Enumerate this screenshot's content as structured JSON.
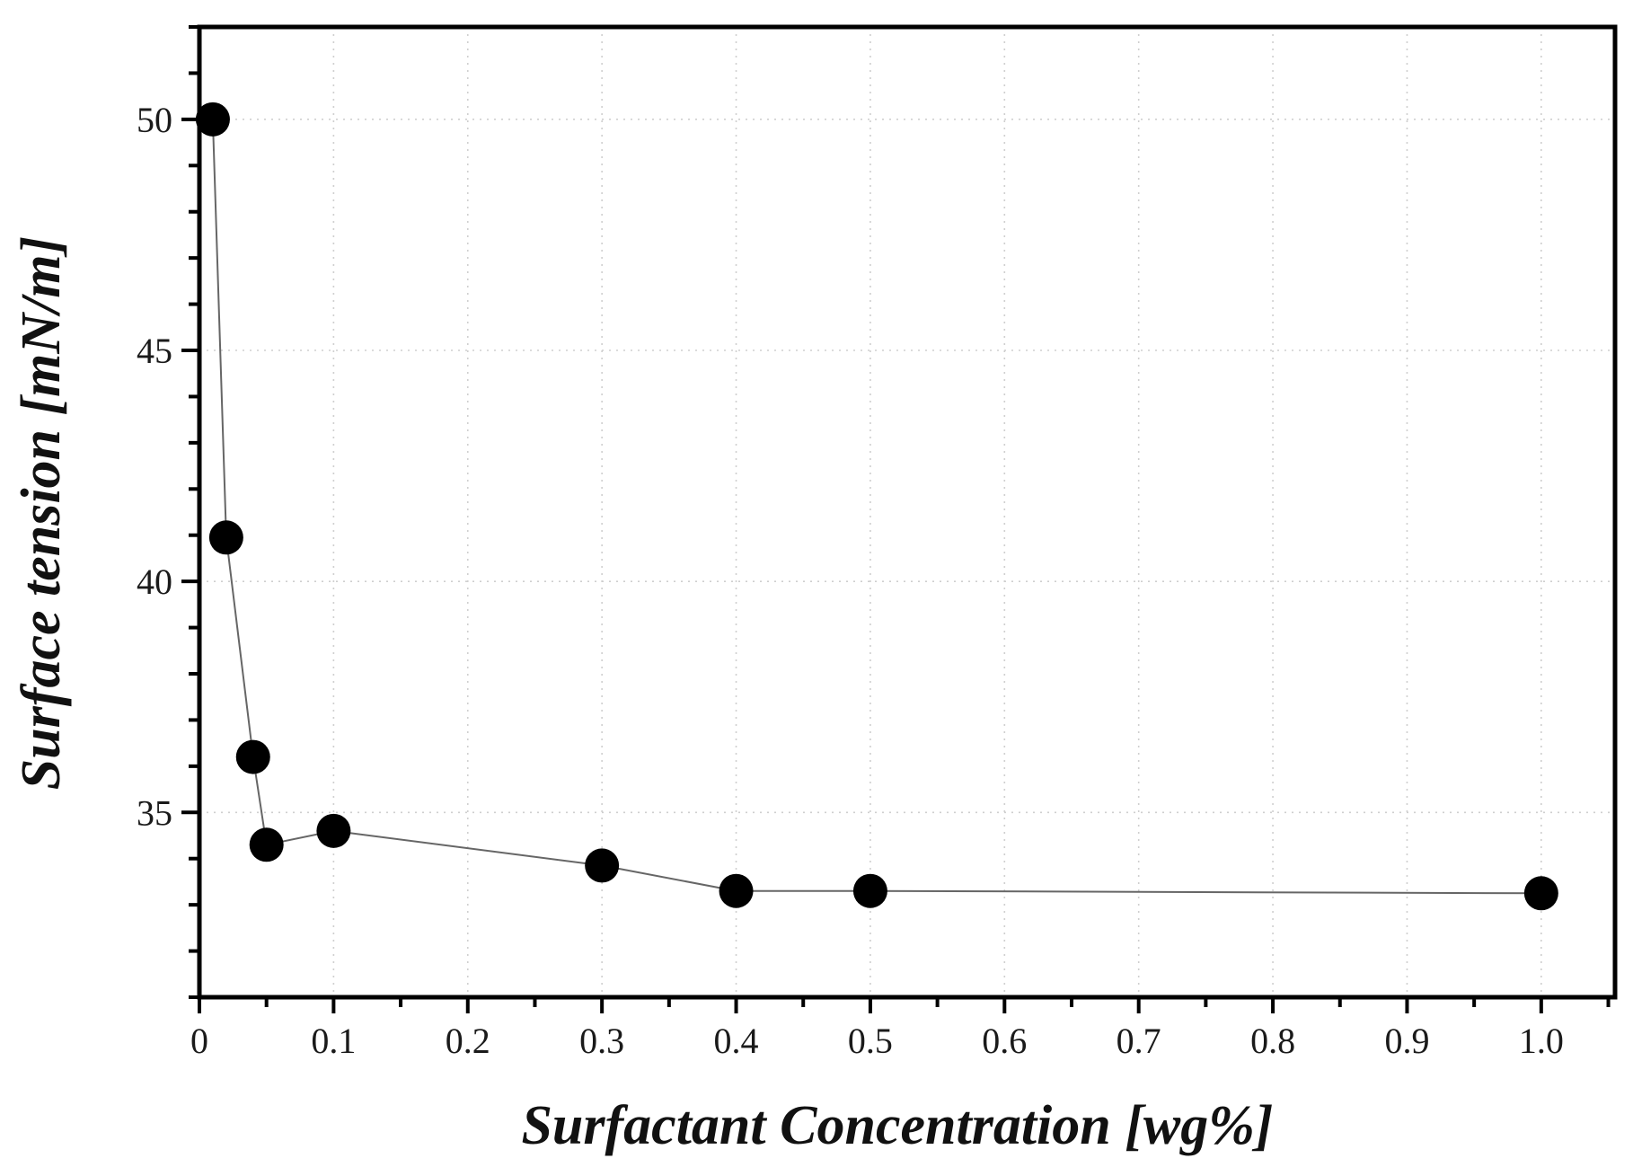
{
  "chart_data": {
    "type": "line",
    "title": "",
    "xlabel": "Surfactant Concentration [wg%]",
    "ylabel": "Surface tension [mN/m]",
    "xlim": [
      0,
      1.055
    ],
    "ylim": [
      31,
      52
    ],
    "grid": true,
    "x_ticks": [
      0,
      0.1,
      0.2,
      0.3,
      0.4,
      0.5,
      0.6,
      0.7,
      0.8,
      0.9,
      1.0
    ],
    "x_tick_labels": [
      "0",
      "0.1",
      "0.2",
      "0.3",
      "0.4",
      "0.5",
      "0.6",
      "0.7",
      "0.8",
      "0.9",
      "1.0"
    ],
    "y_ticks": [
      35,
      40,
      45,
      50
    ],
    "y_tick_labels": [
      "35",
      "40",
      "45",
      "50"
    ],
    "series": [
      {
        "name": "Surface tension",
        "marker": "circle",
        "x": [
          0.01,
          0.02,
          0.04,
          0.05,
          0.1,
          0.3,
          0.4,
          0.5,
          1.0
        ],
        "y": [
          50.0,
          40.95,
          36.2,
          34.3,
          34.6,
          33.85,
          33.3,
          33.3,
          33.25
        ]
      }
    ],
    "colors": {
      "marker": "#000000",
      "line": "#666666",
      "frame": "#000000",
      "grid": "#cfcfcf"
    }
  }
}
